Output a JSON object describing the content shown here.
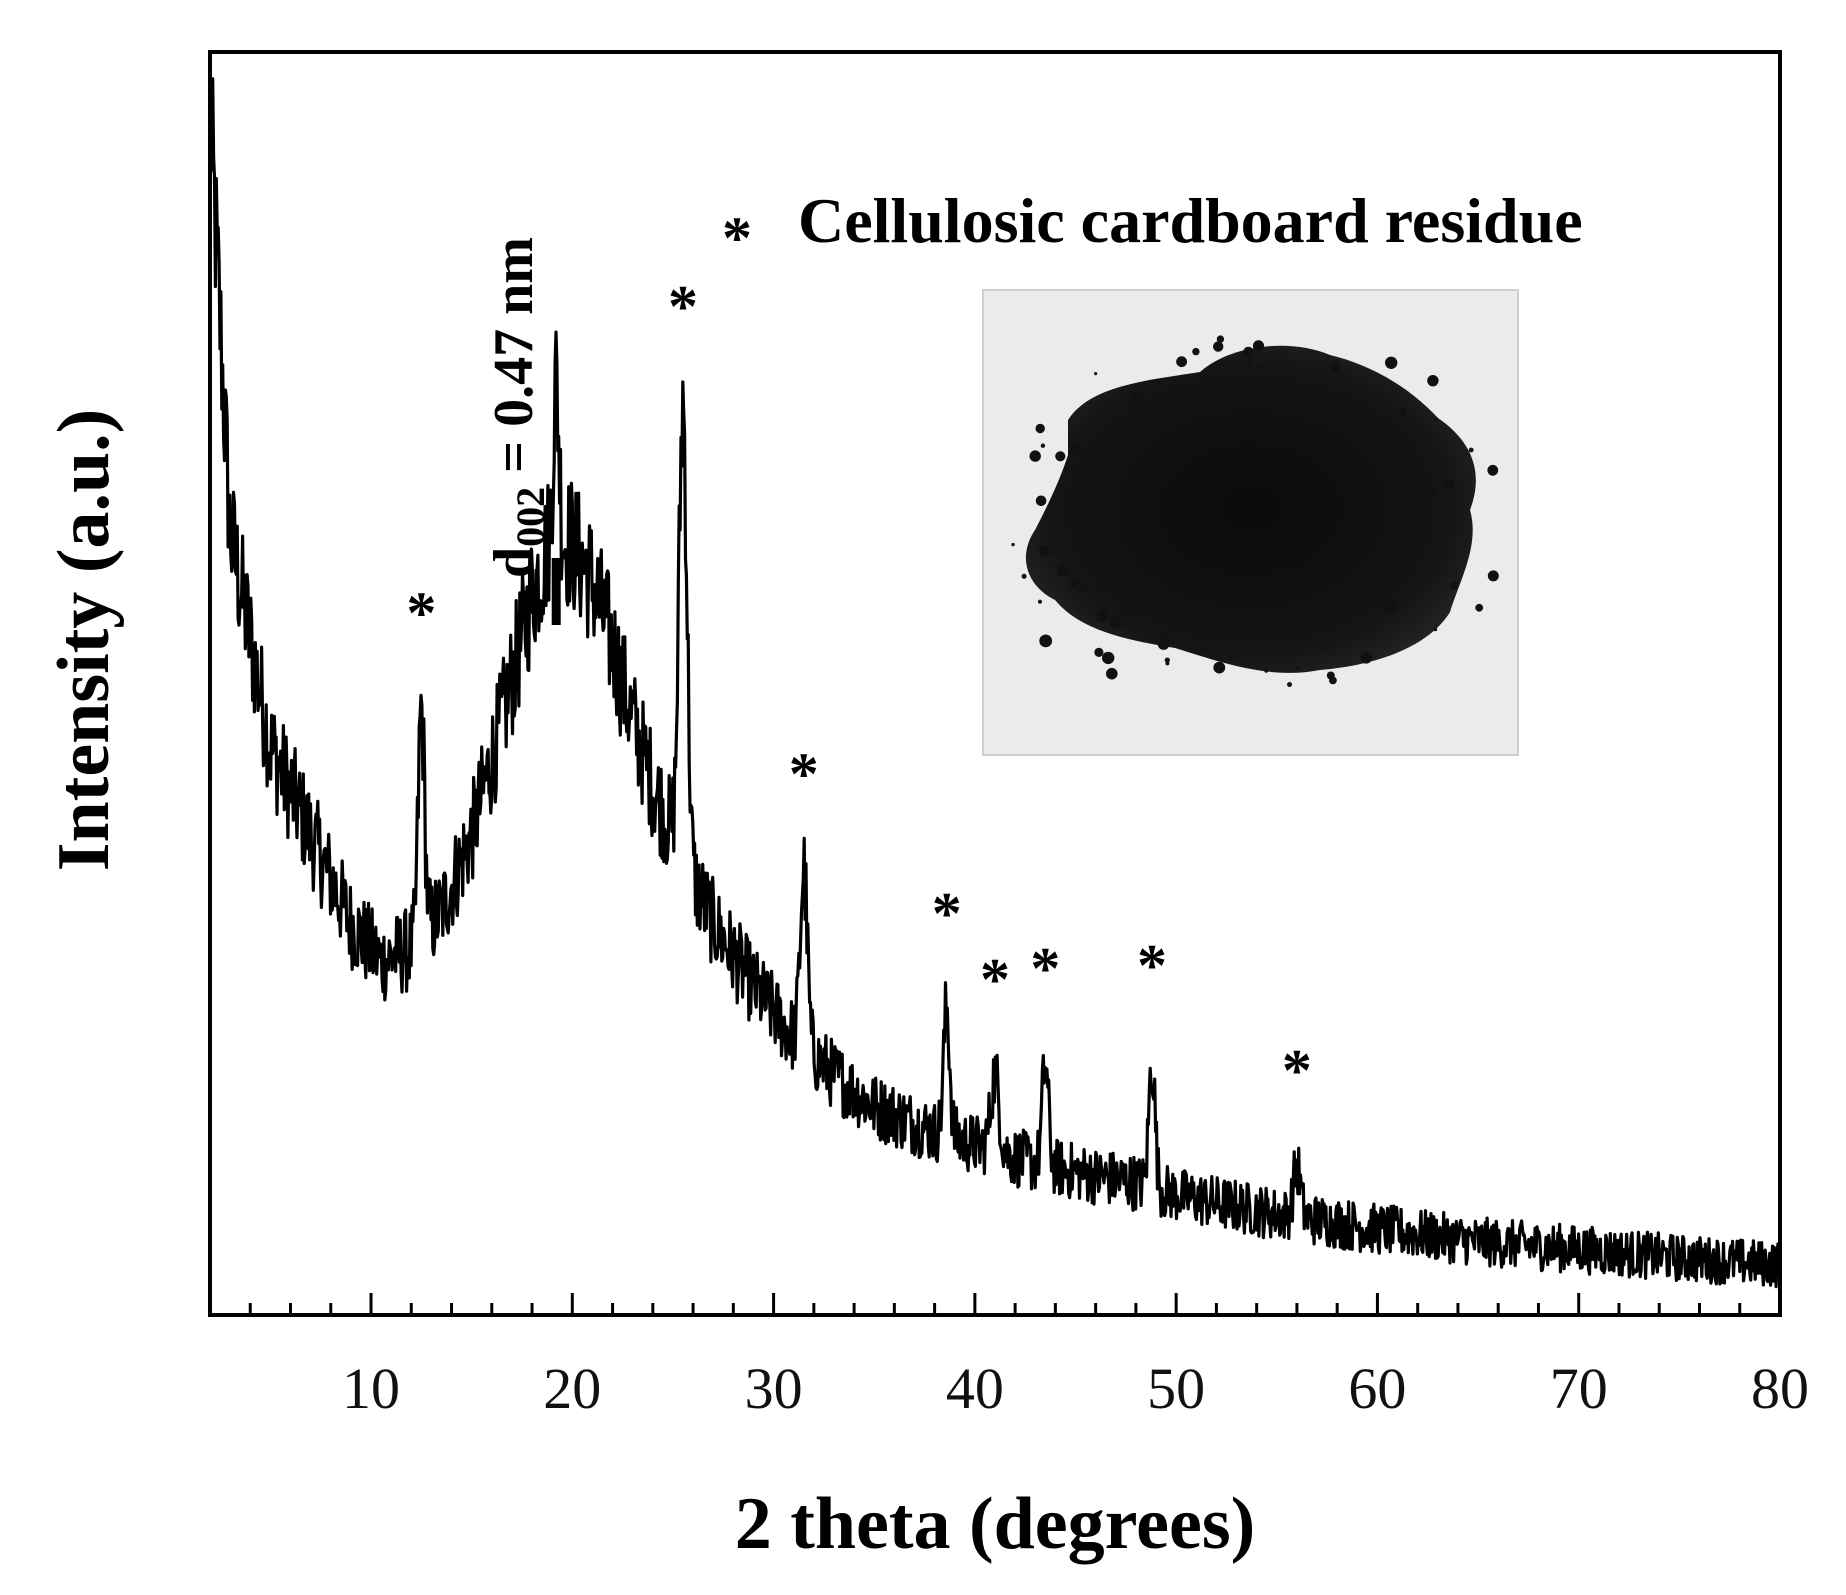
{
  "chart_data": {
    "type": "line",
    "title": "",
    "xlabel": "2 theta (degrees)",
    "ylabel": "Intensity (a.u.)",
    "xlim": [
      2,
      80
    ],
    "xticks": [
      10,
      20,
      30,
      40,
      50,
      60,
      70,
      80
    ],
    "yticks": [],
    "grid": false,
    "legend": {
      "symbol": "*",
      "label": "Cellulosic cardboard residue",
      "position": "top-right"
    },
    "peak_label": {
      "d": "d",
      "subscript": "002",
      "value": " = 0.47 nm",
      "x": 19.2
    },
    "marked_peaks_x": [
      12.5,
      25.5,
      31.5,
      38.6,
      41.0,
      43.5,
      48.8,
      56.0
    ],
    "baseline_points": {
      "x": [
        2,
        3,
        5,
        7,
        9,
        10.5,
        12,
        13.5,
        15,
        16.5,
        18,
        19,
        20,
        21,
        22,
        23,
        24,
        25,
        27,
        29,
        31,
        33,
        35,
        38,
        40,
        43,
        46,
        48,
        50,
        55,
        60,
        65,
        70,
        75,
        80
      ],
      "y": [
        95,
        62,
        45,
        38,
        31,
        28,
        29,
        32,
        38,
        47,
        57,
        62,
        61,
        58,
        53,
        47,
        42,
        38,
        31,
        26,
        22,
        19,
        16.5,
        14.5,
        13.5,
        12,
        11,
        10.5,
        9.5,
        8,
        6.8,
        5.8,
        5.2,
        4.5,
        4
      ]
    },
    "sharp_peaks": {
      "x": [
        12.5,
        19.2,
        25.5,
        31.5,
        38.6,
        41.0,
        43.5,
        48.8,
        56.0
      ],
      "height": [
        18,
        12,
        36,
        14,
        10,
        6,
        8,
        10,
        4
      ],
      "width": [
        0.22,
        0.2,
        0.28,
        0.25,
        0.22,
        0.3,
        0.22,
        0.22,
        0.25
      ]
    },
    "noise_amplitude": 4.5,
    "ylim": [
      0,
      100
    ]
  },
  "inset": {
    "description_icon": "carbon-powder-photo-icon"
  }
}
